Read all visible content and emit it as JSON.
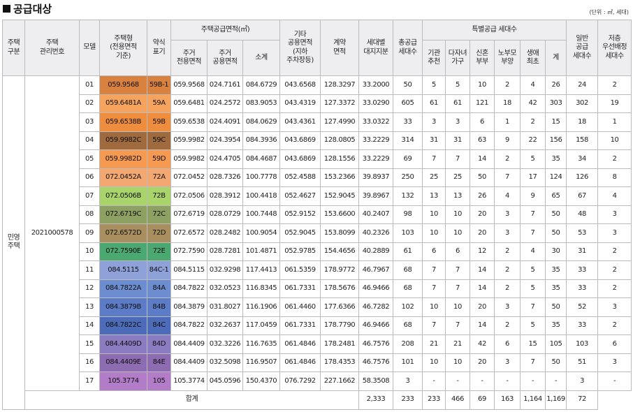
{
  "title": "공급대상",
  "unit": "(단위 : ㎡, 세대)",
  "header": {
    "top": [
      "주택\n구분",
      "주택\n관리번호",
      "모델",
      "주택형\n(전용면적\n기준)",
      "약식\n표기",
      "주택공급면적(㎡)",
      "기타\n공용면적\n(지하\n주차장등)",
      "계약\n면적",
      "세대별\n대지지분",
      "총공급\n세대수",
      "특별공급 세대수",
      "일반\n공급\n세대수",
      "저층\n우선배정\n세대수"
    ],
    "sub": [
      "주거\n전용면적",
      "주거\n공용면적",
      "소계",
      "기관\n추천",
      "다자녀\n가구",
      "신혼\n부부",
      "노부모\n부양",
      "생애\n최초",
      "계"
    ]
  },
  "group": "민영\n주택",
  "housing_number": "2021000578",
  "rows": [
    {
      "color": "#d9813f",
      "cells": [
        "01",
        "059.9568",
        "59B-1",
        "059.9568",
        "024.7161",
        "084.6729",
        "043.6568",
        "128.3297",
        "33.2000",
        "50",
        "5",
        "5",
        "10",
        "2",
        "4",
        "26",
        "24",
        "2"
      ]
    },
    {
      "color": "#f6a35e",
      "cells": [
        "02",
        "059.6481A",
        "59A",
        "059.6481",
        "024.2572",
        "083.9053",
        "043.4319",
        "127.3372",
        "33.0290",
        "605",
        "61",
        "61",
        "121",
        "18",
        "42",
        "303",
        "302",
        "19"
      ]
    },
    {
      "color": "#ef8d3e",
      "cells": [
        "03",
        "059.6538B",
        "59B",
        "059.6538",
        "024.4091",
        "084.0629",
        "043.4361",
        "127.4990",
        "33.0322",
        "33",
        "3",
        "3",
        "6",
        "1",
        "2",
        "15",
        "18",
        "1"
      ]
    },
    {
      "color": "#9e6a3e",
      "cells": [
        "04",
        "059.9982C",
        "59C",
        "059.9982",
        "024.3954",
        "084.3936",
        "043.6869",
        "128.0805",
        "33.2229",
        "314",
        "31",
        "31",
        "63",
        "9",
        "22",
        "156",
        "158",
        "10"
      ]
    },
    {
      "color": "#f69a52",
      "cells": [
        "05",
        "059.9982D",
        "59D",
        "059.9982",
        "024.4705",
        "084.4687",
        "043.6869",
        "128.1556",
        "33.2229",
        "69",
        "7",
        "7",
        "14",
        "2",
        "5",
        "35",
        "34",
        "2"
      ]
    },
    {
      "color": "#f3a872",
      "cells": [
        "06",
        "072.0452A",
        "72A",
        "072.0452",
        "028.7326",
        "100.7778",
        "052.4588",
        "153.2366",
        "39.8937",
        "250",
        "25",
        "25",
        "50",
        "7",
        "17",
        "124",
        "126",
        "8"
      ]
    },
    {
      "color": "#a9d46c",
      "cells": [
        "07",
        "072.0506B",
        "72B",
        "072.0506",
        "028.3912",
        "100.4418",
        "052.4627",
        "152.9045",
        "39.8967",
        "132",
        "13",
        "13",
        "26",
        "4",
        "9",
        "65",
        "67",
        "4"
      ]
    },
    {
      "color": "#8da262",
      "cells": [
        "08",
        "072.6719C",
        "72C",
        "072.6719",
        "028.0729",
        "100.7448",
        "052.9152",
        "153.6600",
        "40.2407",
        "98",
        "10",
        "10",
        "20",
        "3",
        "7",
        "50",
        "48",
        "3"
      ]
    },
    {
      "color": "#a98f5f",
      "cells": [
        "09",
        "072.6572D",
        "72D",
        "072.6572",
        "028.2482",
        "100.9054",
        "052.9045",
        "153.8099",
        "40.2326",
        "103",
        "10",
        "10",
        "20",
        "3",
        "7",
        "50",
        "53",
        "3"
      ]
    },
    {
      "color": "#4ba870",
      "cells": [
        "10",
        "072.7590E",
        "72E",
        "072.7590",
        "028.7281",
        "101.4871",
        "052.9785",
        "154.4656",
        "40.2889",
        "61",
        "6",
        "6",
        "12",
        "2",
        "4",
        "30",
        "31",
        "2"
      ]
    },
    {
      "color": "#8fa1d9",
      "cells": [
        "11",
        "084.5115",
        "84C-1",
        "084.5115",
        "032.9298",
        "117.4413",
        "061.5359",
        "178.9772",
        "46.7967",
        "68",
        "7",
        "7",
        "14",
        "2",
        "5",
        "35",
        "33",
        "2"
      ]
    },
    {
      "color": "#6d8dd1",
      "cells": [
        "12",
        "084.7822A",
        "84A",
        "084.7822",
        "032.0523",
        "116.8345",
        "061.7331",
        "178.5676",
        "46.9466",
        "68",
        "7",
        "7",
        "14",
        "2",
        "5",
        "35",
        "33",
        "2"
      ]
    },
    {
      "color": "#5c7cc8",
      "cells": [
        "13",
        "084.3879B",
        "84B",
        "084.3879",
        "031.8027",
        "116.1906",
        "061.4460",
        "177.6366",
        "46.7282",
        "102",
        "10",
        "10",
        "20",
        "3",
        "7",
        "50",
        "52",
        "3"
      ]
    },
    {
      "color": "#4c6cb9",
      "cells": [
        "14",
        "084.7822C",
        "84C",
        "084.7822",
        "032.2637",
        "117.0459",
        "061.7331",
        "178.7790",
        "46.9466",
        "68",
        "7",
        "7",
        "14",
        "2",
        "5",
        "35",
        "33",
        "2"
      ]
    },
    {
      "color": "#8b7cc1",
      "cells": [
        "15",
        "084.4409D",
        "84D",
        "084.4409",
        "032.3226",
        "116.7635",
        "061.4846",
        "178.2481",
        "46.7576",
        "208",
        "21",
        "21",
        "42",
        "6",
        "15",
        "105",
        "103",
        "6"
      ]
    },
    {
      "color": "#8d6cb2",
      "cells": [
        "16",
        "084.4409E",
        "84E",
        "084.4409",
        "032.5098",
        "116.9507",
        "061.4846",
        "178.4353",
        "46.7576",
        "101",
        "10",
        "10",
        "20",
        "3",
        "7",
        "50",
        "51",
        "3"
      ]
    },
    {
      "color": "#b27cc9",
      "cells": [
        "17",
        "105.3774",
        "105",
        "105.3774",
        "045.0596",
        "150.4370",
        "076.7292",
        "227.1662",
        "58.3508",
        "3",
        "-",
        "-",
        "-",
        "-",
        "-",
        "-",
        "3",
        "-"
      ]
    }
  ],
  "total": {
    "label": "합계",
    "cells": [
      "2,333",
      "233",
      "233",
      "466",
      "69",
      "163",
      "1,164",
      "1,169",
      "72"
    ]
  }
}
